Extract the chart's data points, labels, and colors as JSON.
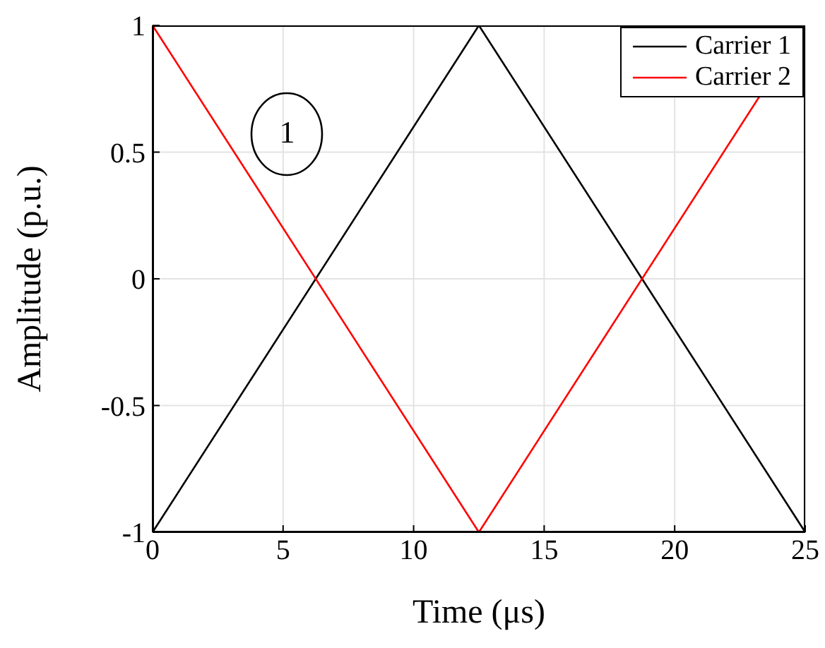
{
  "chart_data": {
    "type": "line",
    "xlabel": "Time (μs)",
    "ylabel": "Amplitude (p.u.)",
    "annotations": [
      "1"
    ],
    "x": [
      0,
      12.5,
      25
    ],
    "series": [
      {
        "name": "Carrier 1",
        "color": "#000000",
        "values": [
          -1,
          1,
          -1
        ]
      },
      {
        "name": "Carrier 2",
        "color": "#ff0000",
        "values": [
          1,
          -1,
          1
        ]
      }
    ],
    "xlim": [
      0,
      25
    ],
    "xticks": [
      0,
      5,
      10,
      15,
      20,
      25
    ],
    "ylim": [
      -1,
      1
    ],
    "yticks": [
      -1,
      -0.5,
      0,
      0.5,
      1
    ],
    "grid": true,
    "legend": "top right",
    "marker": "none",
    "line_style": "solid"
  }
}
